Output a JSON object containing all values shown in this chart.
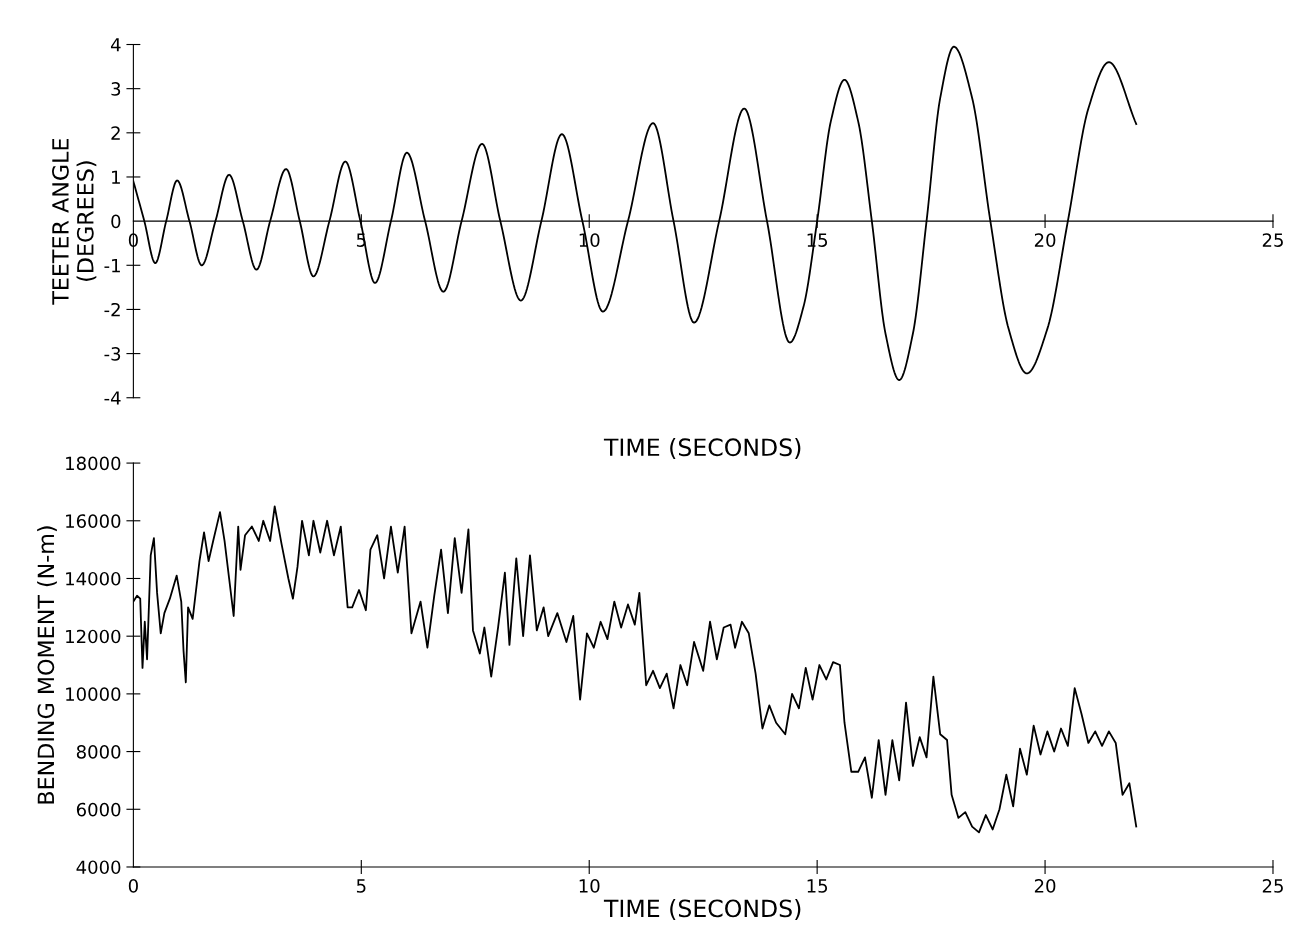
{
  "chart_data": [
    {
      "type": "line",
      "xlabel": "TIME (SECONDS)",
      "ylabel": "TEETER ANGLE\n(DEGREES)",
      "xlim": [
        0,
        25
      ],
      "ylim": [
        -4,
        4
      ],
      "xticks": [
        0,
        5,
        10,
        15,
        20,
        25
      ],
      "yticks": [
        -4,
        -3,
        -2,
        -1,
        0,
        1,
        2,
        3,
        4
      ],
      "x": [
        0,
        0.24,
        0.48,
        0.72,
        0.96,
        1.23,
        1.5,
        1.8,
        2.1,
        2.4,
        2.7,
        3.0,
        3.35,
        3.65,
        3.95,
        4.3,
        4.65,
        4.98,
        5.3,
        5.65,
        6.0,
        6.4,
        6.8,
        7.2,
        7.65,
        8.05,
        8.5,
        8.95,
        9.4,
        9.85,
        10.3,
        10.85,
        11.4,
        11.85,
        12.3,
        12.85,
        13.4,
        13.9,
        14.4,
        14.7,
        15.0,
        15.3,
        15.6,
        15.9,
        16.2,
        16.5,
        16.8,
        17.1,
        17.4,
        17.7,
        18.0,
        18.4,
        18.8,
        19.2,
        19.6,
        20.05,
        20.5,
        20.95,
        21.4,
        22.0
      ],
      "series": [
        {
          "color": "#000000",
          "values": [
            0.9,
            0,
            -0.95,
            0,
            0.92,
            0,
            -1.0,
            0,
            1.05,
            0,
            -1.1,
            0,
            1.18,
            0,
            -1.25,
            0,
            1.35,
            0,
            -1.4,
            0,
            1.55,
            0,
            -1.6,
            0,
            1.75,
            0,
            -1.8,
            0,
            1.97,
            0,
            -2.05,
            0,
            2.22,
            0,
            -2.3,
            0,
            2.55,
            0,
            -2.75,
            -1.94,
            0,
            2.26,
            3.2,
            2.26,
            0,
            -2.55,
            -3.6,
            -2.55,
            0,
            2.79,
            3.95,
            2.79,
            0,
            -2.44,
            -3.45,
            -2.44,
            0,
            2.55,
            3.6,
            2.2
          ]
        }
      ]
    },
    {
      "type": "line",
      "xlabel": "TIME (SECONDS)",
      "ylabel": "BENDING MOMENT (N-m)",
      "xlim": [
        0,
        25
      ],
      "ylim": [
        4000,
        18000
      ],
      "xticks": [
        0,
        5,
        10,
        15,
        20,
        25
      ],
      "yticks": [
        4000,
        6000,
        8000,
        10000,
        12000,
        14000,
        16000,
        18000
      ],
      "x": [
        0,
        0.08,
        0.15,
        0.2,
        0.25,
        0.3,
        0.38,
        0.45,
        0.52,
        0.6,
        0.68,
        0.8,
        0.95,
        1.05,
        1.1,
        1.15,
        1.2,
        1.3,
        1.45,
        1.55,
        1.65,
        1.75,
        1.9,
        2.0,
        2.1,
        2.2,
        2.3,
        2.35,
        2.45,
        2.6,
        2.75,
        2.85,
        3.0,
        3.1,
        3.25,
        3.4,
        3.5,
        3.6,
        3.7,
        3.85,
        3.95,
        4.1,
        4.25,
        4.4,
        4.55,
        4.7,
        4.8,
        4.95,
        5.1,
        5.2,
        5.35,
        5.5,
        5.65,
        5.8,
        5.95,
        6.1,
        6.3,
        6.45,
        6.6,
        6.75,
        6.9,
        7.05,
        7.2,
        7.35,
        7.45,
        7.6,
        7.7,
        7.85,
        8.0,
        8.15,
        8.25,
        8.4,
        8.55,
        8.7,
        8.85,
        9.0,
        9.1,
        9.3,
        9.5,
        9.65,
        9.8,
        9.95,
        10.1,
        10.25,
        10.4,
        10.55,
        10.7,
        10.85,
        11.0,
        11.1,
        11.25,
        11.4,
        11.55,
        11.7,
        11.85,
        12.0,
        12.15,
        12.3,
        12.5,
        12.65,
        12.8,
        12.95,
        13.1,
        13.2,
        13.35,
        13.5,
        13.65,
        13.8,
        13.95,
        14.1,
        14.3,
        14.45,
        14.6,
        14.75,
        14.9,
        15.05,
        15.2,
        15.35,
        15.5,
        15.6,
        15.75,
        15.9,
        16.05,
        16.2,
        16.35,
        16.5,
        16.65,
        16.8,
        16.95,
        17.1,
        17.25,
        17.4,
        17.55,
        17.7,
        17.85,
        17.95,
        18.1,
        18.25,
        18.4,
        18.55,
        18.7,
        18.85,
        19.0,
        19.15,
        19.3,
        19.45,
        19.6,
        19.75,
        19.9,
        20.05,
        20.2,
        20.35,
        20.5,
        20.65,
        20.8,
        20.95,
        21.1,
        21.25,
        21.4,
        21.55,
        21.7,
        21.85,
        22.0
      ],
      "series": [
        {
          "color": "#000000",
          "values": [
            13200,
            13400,
            13300,
            10900,
            12500,
            11200,
            14800,
            15400,
            13500,
            12100,
            12800,
            13300,
            14100,
            13200,
            11500,
            10400,
            13000,
            12600,
            14600,
            15600,
            14600,
            15300,
            16300,
            15300,
            14000,
            12700,
            15800,
            14300,
            15500,
            15800,
            15300,
            16000,
            15300,
            16500,
            15200,
            14000,
            13300,
            14400,
            16000,
            14800,
            16000,
            14900,
            16000,
            14800,
            15800,
            13000,
            13000,
            13600,
            12900,
            15000,
            15500,
            14000,
            15800,
            14200,
            15800,
            12100,
            13200,
            11600,
            13400,
            15000,
            12800,
            15400,
            13500,
            15700,
            12200,
            11400,
            12300,
            10600,
            12300,
            14200,
            11700,
            14700,
            12000,
            14800,
            12200,
            13000,
            12000,
            12800,
            11800,
            12700,
            9800,
            12100,
            11600,
            12500,
            11900,
            13200,
            12300,
            13100,
            12400,
            13500,
            10300,
            10800,
            10200,
            10700,
            9500,
            11000,
            10300,
            11800,
            10800,
            12500,
            11200,
            12300,
            12400,
            11600,
            12500,
            12100,
            10700,
            8800,
            9600,
            9000,
            8600,
            10000,
            9500,
            10900,
            9800,
            11000,
            10500,
            11100,
            11000,
            9000,
            7300,
            7300,
            7800,
            6400,
            8400,
            6500,
            8400,
            7000,
            9700,
            7500,
            8500,
            7800,
            10600,
            8600,
            8400,
            6500,
            5700,
            5900,
            5400,
            5200,
            5800,
            5300,
            6000,
            7200,
            6100,
            8100,
            7200,
            8900,
            7900,
            8700,
            8000,
            8800,
            8200,
            10200,
            9300,
            8300,
            8700,
            8200,
            8700,
            8300,
            6500,
            6900,
            5400
          ]
        }
      ]
    }
  ]
}
